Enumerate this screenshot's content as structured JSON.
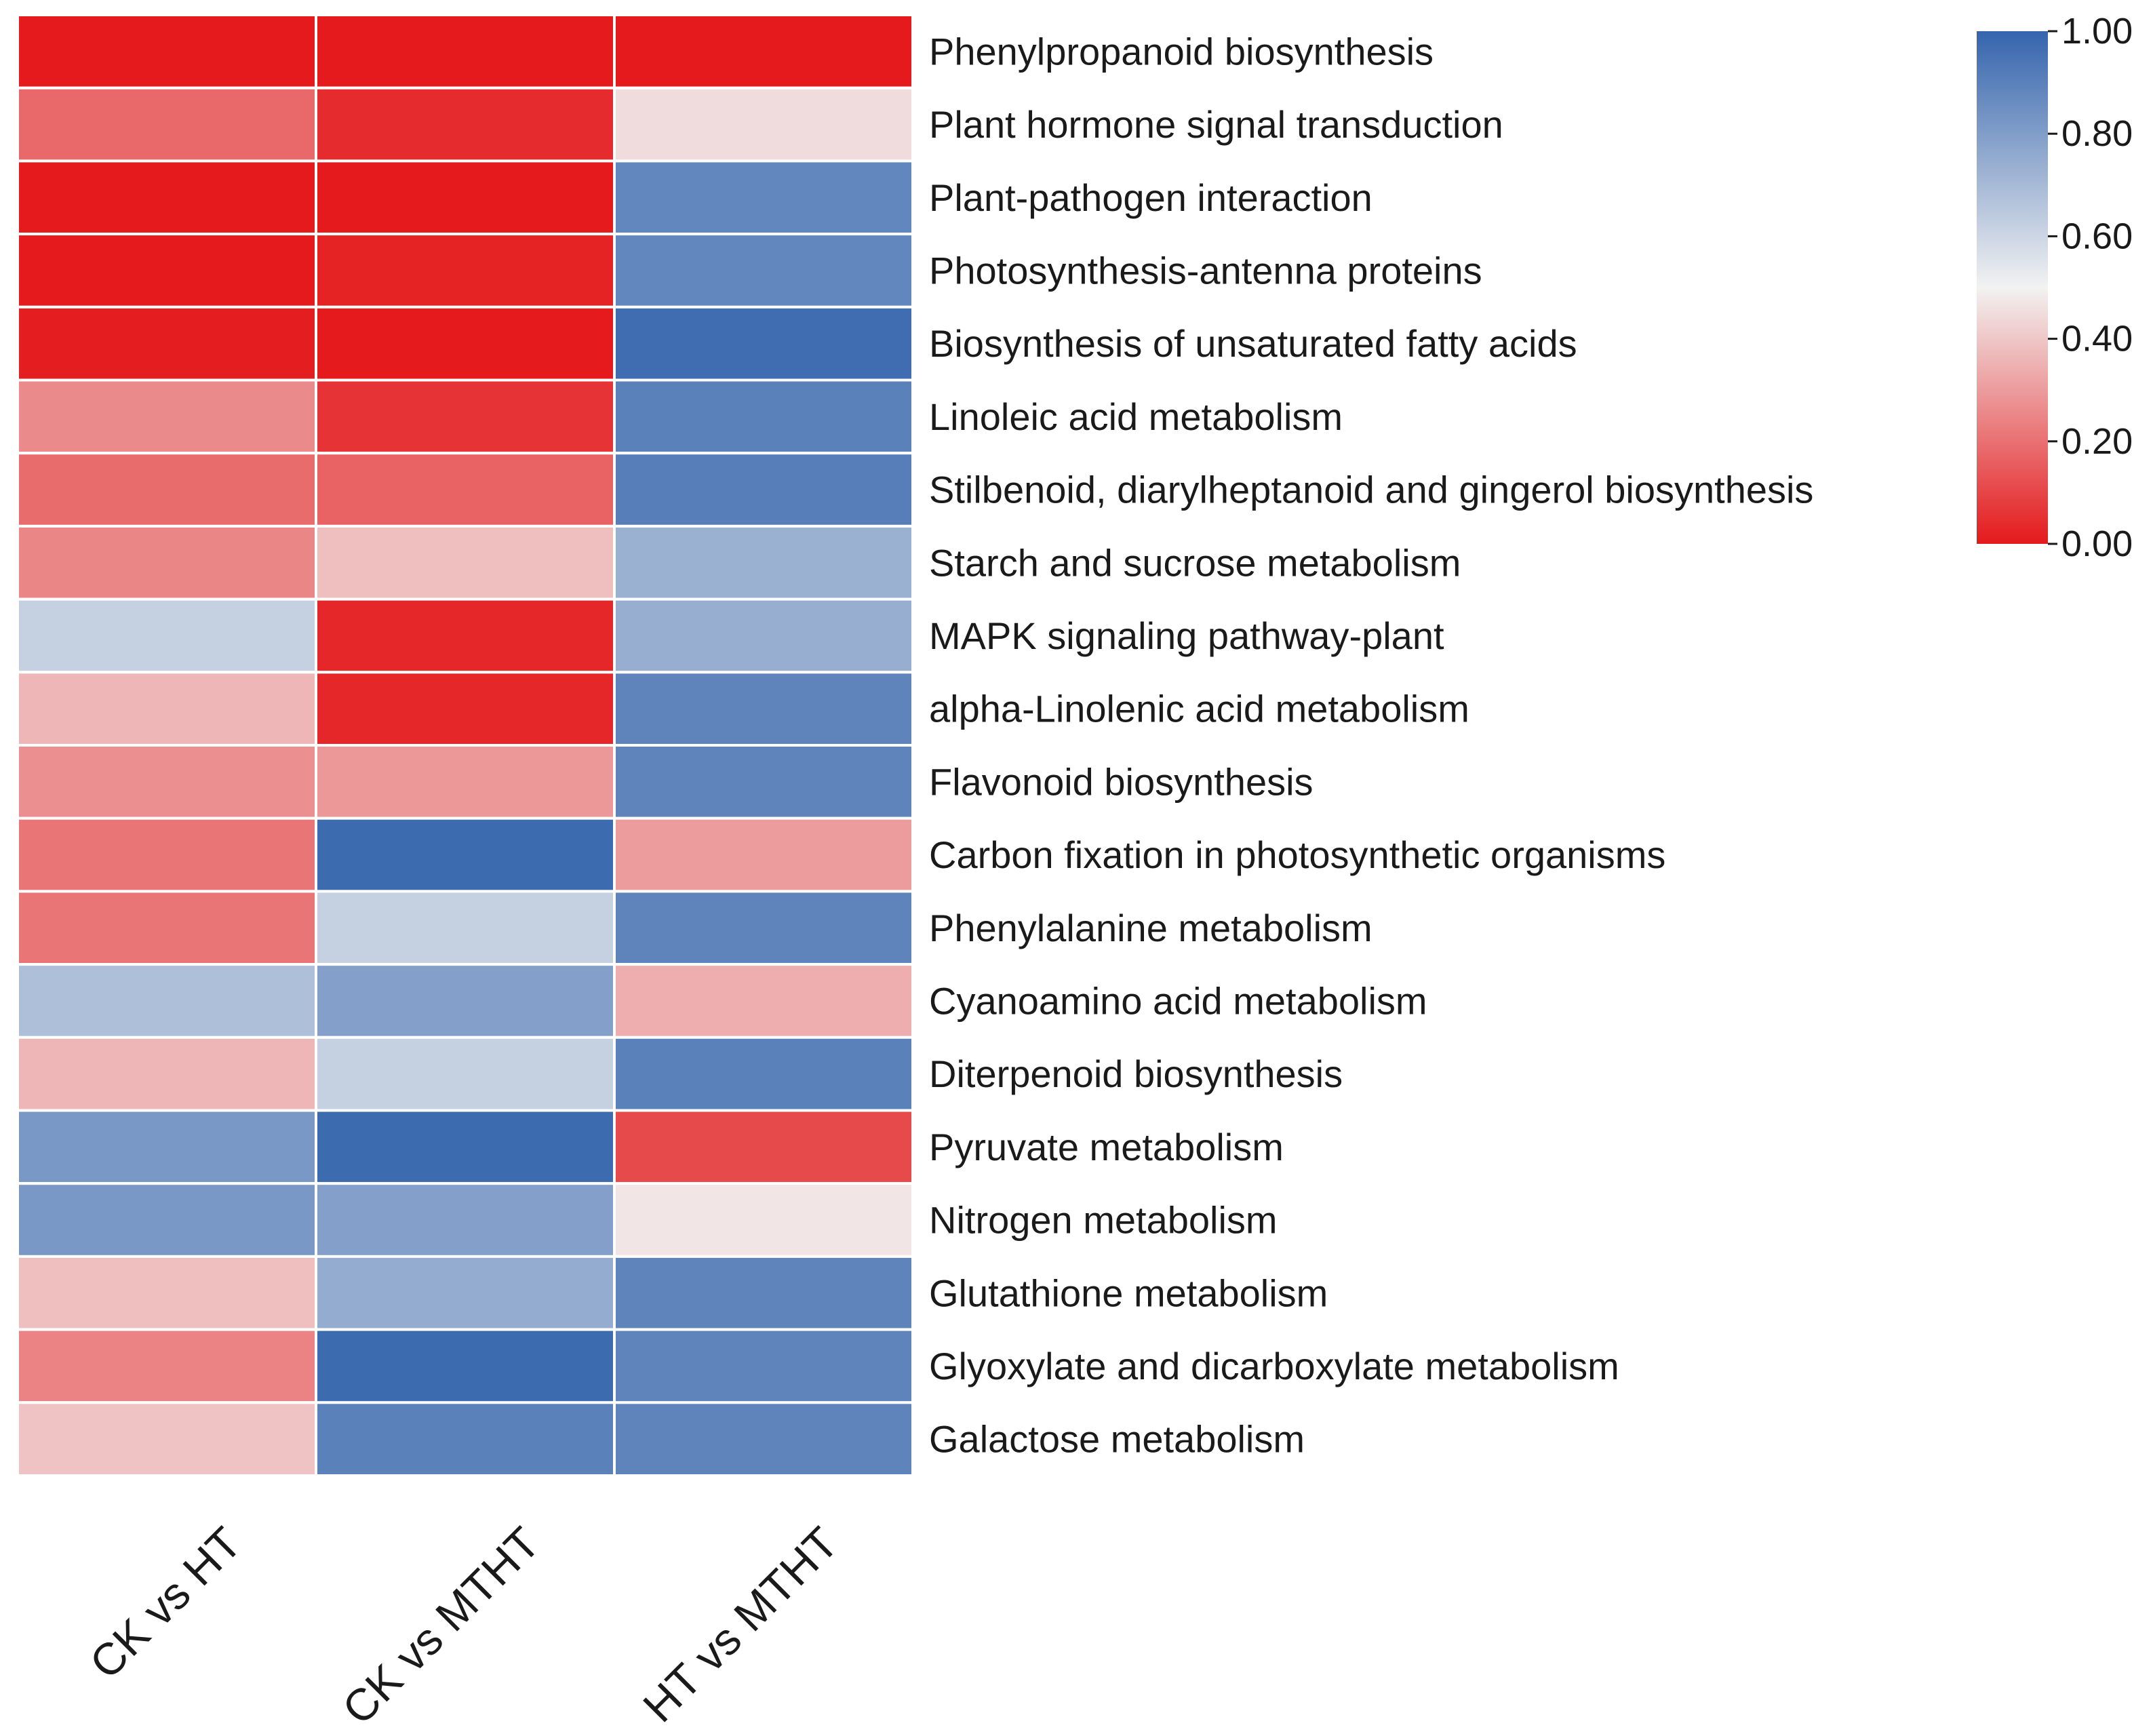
{
  "chart_data": {
    "type": "heatmap",
    "columns": [
      "CK vs HT",
      "CK vs MTHT",
      "HT vs MTHT"
    ],
    "rows": [
      "Phenylpropanoid biosynthesis",
      "Plant hormone signal transduction",
      "Plant-pathogen interaction",
      "Photosynthesis-antenna proteins",
      "Biosynthesis of unsaturated fatty acids",
      "Linoleic acid metabolism",
      "Stilbenoid, diarylheptanoid and gingerol biosynthesis",
      "Starch and sucrose metabolism",
      "MAPK signaling pathway-plant",
      "alpha-Linolenic acid metabolism",
      "Flavonoid biosynthesis",
      "Carbon fixation in photosynthetic organisms",
      "Phenylalanine metabolism",
      "Cyanoamino acid metabolism",
      "Diterpenoid biosynthesis",
      "Pyruvate metabolism",
      "Nitrogen metabolism",
      "Glutathione metabolism",
      "Glyoxylate and dicarboxylate metabolism",
      "Galactose metabolism"
    ],
    "values": [
      [
        0.0,
        0.0,
        0.0
      ],
      [
        0.18,
        0.04,
        0.45
      ],
      [
        0.0,
        0.0,
        0.88
      ],
      [
        0.0,
        0.02,
        0.88
      ],
      [
        0.01,
        0.0,
        0.97
      ],
      [
        0.26,
        0.06,
        0.9
      ],
      [
        0.19,
        0.17,
        0.91
      ],
      [
        0.25,
        0.38,
        0.73
      ],
      [
        0.62,
        0.03,
        0.74
      ],
      [
        0.36,
        0.03,
        0.89
      ],
      [
        0.27,
        0.29,
        0.89
      ],
      [
        0.21,
        0.98,
        0.3
      ],
      [
        0.21,
        0.62,
        0.89
      ],
      [
        0.68,
        0.79,
        0.34
      ],
      [
        0.36,
        0.62,
        0.9
      ],
      [
        0.82,
        0.98,
        0.11
      ],
      [
        0.82,
        0.79,
        0.47
      ],
      [
        0.38,
        0.75,
        0.89
      ],
      [
        0.24,
        0.98,
        0.89
      ],
      [
        0.39,
        0.9,
        0.89
      ]
    ],
    "colorbar": {
      "min": 0.0,
      "max": 1.0,
      "ticks": [
        "0.00",
        "0.20",
        "0.40",
        "0.60",
        "0.80",
        "1.00"
      ],
      "colors": {
        "low": "#e41a1c",
        "mid": "#f2f2f2",
        "high": "#3565ad"
      }
    }
  }
}
